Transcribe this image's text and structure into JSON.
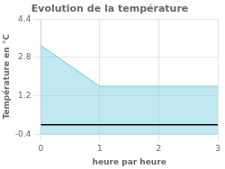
{
  "chart_data": {
    "type": "area",
    "title": "Evolution de la température",
    "xlabel": "heure par heure",
    "ylabel": "Température en °C",
    "x": [
      0,
      1,
      3
    ],
    "values": [
      3.3,
      1.6,
      1.6
    ],
    "color": "#72cce0",
    "baseline": 0,
    "xlim": [
      0,
      3
    ],
    "ylim": [
      -0.4,
      4.4
    ],
    "xticks": [
      0,
      1,
      2,
      3
    ],
    "yticks": [
      -0.4,
      1.2,
      2.8,
      4.4
    ],
    "grid": true
  }
}
